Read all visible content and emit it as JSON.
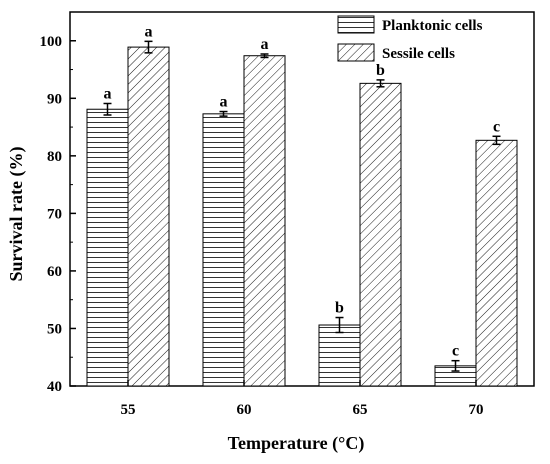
{
  "chart_data": {
    "type": "bar",
    "xlabel": "Temperature (°C)",
    "ylabel": "Survival rate (%)",
    "ylim": [
      40,
      105
    ],
    "yticks": [
      40,
      50,
      60,
      70,
      80,
      90,
      100
    ],
    "categories": [
      "55",
      "60",
      "65",
      "70"
    ],
    "legend_position": "top-right",
    "series": [
      {
        "name": "Planktonic cells",
        "pattern": "horizontal-lines",
        "values": [
          88.1,
          87.3,
          50.6,
          43.5
        ],
        "errors": [
          1.0,
          0.4,
          1.3,
          0.9
        ],
        "significance": [
          "a",
          "a",
          "b",
          "c"
        ]
      },
      {
        "name": "Sessile cells",
        "pattern": "diagonal-hatch",
        "values": [
          98.9,
          97.4,
          92.6,
          82.7
        ],
        "errors": [
          1.0,
          0.3,
          0.6,
          0.7
        ],
        "significance": [
          "a",
          "a",
          "b",
          "c"
        ]
      }
    ]
  }
}
